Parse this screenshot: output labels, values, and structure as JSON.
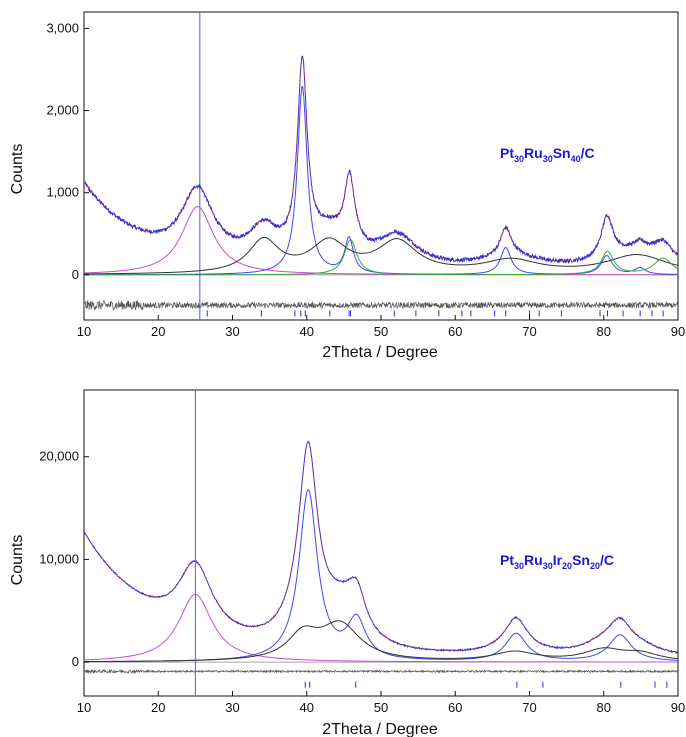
{
  "chart_data": [
    {
      "type": "line",
      "title": "Pt30Ru30Sn40/C",
      "title_parts": [
        {
          "text": "Pt"
        },
        {
          "text": "30",
          "sub": true
        },
        {
          "text": "Ru"
        },
        {
          "text": "30",
          "sub": true
        },
        {
          "text": "Sn"
        },
        {
          "text": "40",
          "sub": true
        },
        {
          "text": "/C"
        }
      ],
      "xlabel": "2Theta / Degree",
      "ylabel": "Counts",
      "xlim": [
        10,
        90
      ],
      "ylim": [
        -550,
        3200
      ],
      "x_ticks": [
        10,
        20,
        30,
        40,
        50,
        60,
        70,
        80,
        90
      ],
      "y_ticks": [
        {
          "v": 0,
          "label": "0"
        },
        {
          "v": 1000,
          "label": "1,000"
        },
        {
          "v": 2000,
          "label": "2,000"
        },
        {
          "v": 3000,
          "label": "3,000"
        }
      ],
      "reference_line_x": 25.6,
      "colors": {
        "observed": "#2b2bd8",
        "calc": "#e03030",
        "diff": "#555555",
        "ref": "#4a5cf0",
        "hkl": "#2b2bd8"
      },
      "components": [
        {
          "name": "carbon",
          "color": "#c94fc9",
          "center": 25.3,
          "amplitude": 830,
          "fwhm": 5.2
        },
        {
          "name": "phase-1",
          "color": "#3f48f0",
          "peaks": [
            [
              39.4,
              2300,
              1.6
            ],
            [
              45.7,
              430,
              1.4
            ],
            [
              66.8,
              330,
              1.7
            ],
            [
              80.4,
              230,
              1.8
            ],
            [
              84.9,
              80,
              1.8
            ]
          ]
        },
        {
          "name": "phase-2",
          "color": "#333333",
          "peaks": [
            [
              34.2,
              400,
              5
            ],
            [
              43,
              370,
              6
            ],
            [
              52.2,
              380,
              6.5
            ],
            [
              67.5,
              160,
              9
            ],
            [
              84.5,
              230,
              10
            ]
          ]
        },
        {
          "name": "phase-3",
          "color": "#3aa83a",
          "peaks": [
            [
              45.9,
              430,
              2
            ],
            [
              80.5,
              280,
              2
            ],
            [
              88,
              200,
              3
            ]
          ]
        }
      ],
      "background": {
        "a0": 1050,
        "decay": 8,
        "base": 40
      },
      "difference_offset": -370,
      "hkl_positions": [
        26.6,
        33.9,
        38.4,
        39.2,
        39.8,
        43.1,
        45.7,
        45.9,
        51.8,
        54.7,
        57.8,
        60.9,
        62.1,
        65.3,
        66.8,
        70.0,
        71.3,
        74.3,
        79.5,
        80.5,
        82.6,
        84.9,
        86.5,
        88.0
      ],
      "hkl_y": -470
    },
    {
      "type": "line",
      "title": "Pt30Ru30Ir20Sn20/C",
      "title_parts": [
        {
          "text": "Pt"
        },
        {
          "text": "30",
          "sub": true
        },
        {
          "text": "Ru"
        },
        {
          "text": "30",
          "sub": true
        },
        {
          "text": "Ir"
        },
        {
          "text": "20",
          "sub": true
        },
        {
          "text": "Sn"
        },
        {
          "text": "20",
          "sub": true
        },
        {
          "text": "/C"
        }
      ],
      "xlabel": "2Theta / Degree",
      "ylabel": "Counts",
      "xlim": [
        10,
        90
      ],
      "ylim": [
        -3300,
        26500
      ],
      "x_ticks": [
        10,
        20,
        30,
        40,
        50,
        60,
        70,
        80,
        90
      ],
      "y_ticks": [
        {
          "v": 0,
          "label": "0"
        },
        {
          "v": 10000,
          "label": "10,000"
        },
        {
          "v": 20000,
          "label": "20,000"
        }
      ],
      "reference_line_x": 25,
      "colors": {
        "observed": "#2b2bd8",
        "calc": "#e03030",
        "diff": "#555555",
        "ref": "#4a5cf0",
        "hkl": "#2b2bd8"
      },
      "components": [
        {
          "name": "carbon",
          "color": "#c94fc9",
          "center": 25,
          "amplitude": 6600,
          "fwhm": 5.5
        },
        {
          "name": "phase-1",
          "color": "#3f48f0",
          "peaks": [
            [
              40.2,
              16600,
              3
            ],
            [
              46.7,
              3800,
              3
            ],
            [
              68.2,
              2700,
              3.5
            ],
            [
              82.2,
              2600,
              3.7
            ]
          ]
        },
        {
          "name": "phase-2",
          "color": "#333333",
          "peaks": [
            [
              39.5,
              2400,
              5
            ],
            [
              44.5,
              3500,
              6.5
            ],
            [
              68,
              900,
              7
            ],
            [
              80,
              1100,
              6.5
            ],
            [
              85,
              700,
              6
            ]
          ]
        }
      ],
      "background": {
        "a0": 12000,
        "decay": 9.5,
        "base": 400
      },
      "difference_offset": -900,
      "hkl_positions": [
        39.8,
        40.4,
        46.6,
        68.3,
        71.8,
        82.3,
        86.9,
        88.5
      ],
      "hkl_y": -2200
    }
  ]
}
